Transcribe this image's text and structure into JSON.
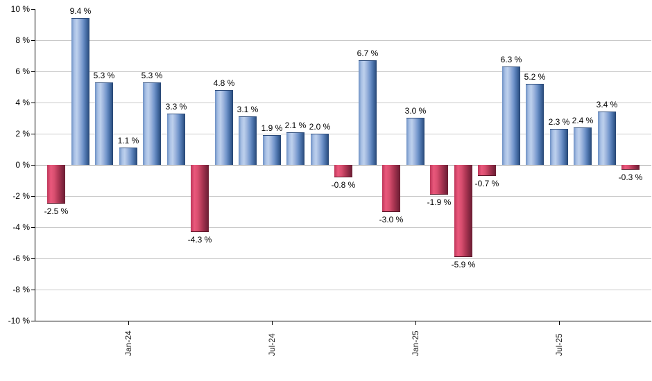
{
  "chart_data": {
    "type": "bar",
    "title": "",
    "xlabel": "",
    "ylabel": "",
    "ylim": [
      -10,
      10
    ],
    "y_tick_step": 2,
    "grid": "horizontal",
    "legend": null,
    "values": [
      -2.5,
      9.4,
      5.3,
      1.1,
      5.3,
      3.3,
      -4.3,
      4.8,
      3.1,
      1.9,
      2.1,
      2.0,
      -0.8,
      6.7,
      -3.0,
      3.0,
      -1.9,
      -5.9,
      -0.7,
      6.3,
      5.2,
      2.3,
      2.4,
      3.4,
      -0.3
    ],
    "value_labels": [
      "-2.5 %",
      "9.4 %",
      "5.3 %",
      "1.1 %",
      "5.3 %",
      "3.3 %",
      "-4.3 %",
      "4.8 %",
      "3.1 %",
      "1.9 %",
      "2.1 %",
      "2.0 %",
      "-0.8 %",
      "6.7 %",
      "-3.0 %",
      "3.0 %",
      "-1.9 %",
      "-5.9 %",
      "-0.7 %",
      "6.3 %",
      "5.2 %",
      "2.3 %",
      "2.4 %",
      "3.4 %",
      "-0.3 %"
    ],
    "y_ticks": [
      {
        "value": 10,
        "label": "10 %"
      },
      {
        "value": 8,
        "label": "8 %"
      },
      {
        "value": 6,
        "label": "6 %"
      },
      {
        "value": 4,
        "label": "4 %"
      },
      {
        "value": 2,
        "label": "2 %"
      },
      {
        "value": 0,
        "label": "0 %"
      },
      {
        "value": -2,
        "label": "-2 %"
      },
      {
        "value": -4,
        "label": "-4 %"
      },
      {
        "value": -6,
        "label": "-6 %"
      },
      {
        "value": -8,
        "label": "-8 %"
      },
      {
        "value": -10,
        "label": "-10 %"
      }
    ],
    "x_ticks": [
      {
        "label": "Jan-24",
        "bar_index": 3
      },
      {
        "label": "Jul-24",
        "bar_index": 9
      },
      {
        "label": "Jan-25",
        "bar_index": 15
      },
      {
        "label": "Jul-25",
        "bar_index": 21
      }
    ],
    "colors": {
      "positive_main": "#7598cd",
      "positive_light": "#bed0ed",
      "positive_dark": "#24436f",
      "negative_main": "#d84e6f",
      "negative_light": "#ee5c80",
      "negative_dark": "#6b1e32",
      "gridline": "#c9c9c9",
      "zero_line": "#ababab",
      "axis": "#000000",
      "label_text": "#000000"
    }
  }
}
